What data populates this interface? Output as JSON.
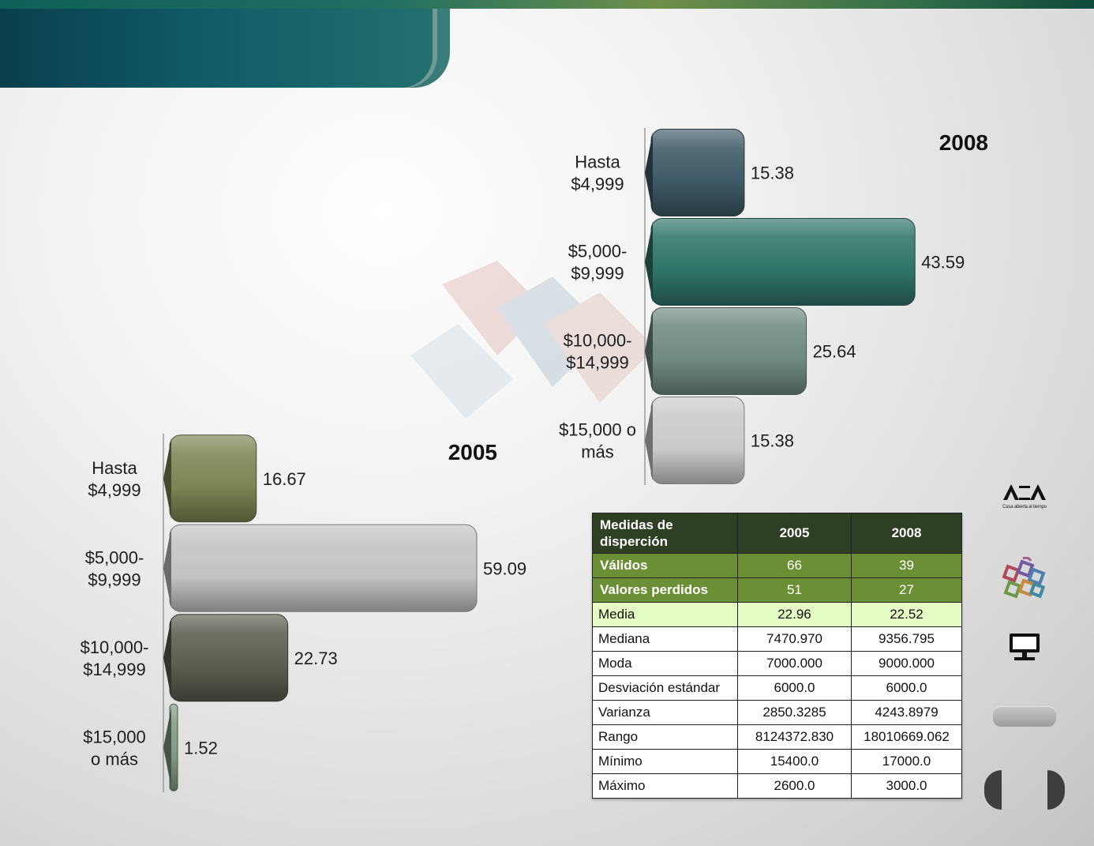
{
  "chart_data": [
    {
      "type": "bar",
      "orientation": "horizontal",
      "title": "2008",
      "categories": [
        "Hasta $4,999",
        "$5,000-$9,999",
        "$10,000-$14,999",
        "$15,000 o más"
      ],
      "category_lines": [
        [
          "Hasta",
          "$4,999"
        ],
        [
          "$5,000-",
          "$9,999"
        ],
        [
          "$10,000-",
          "$14,999"
        ],
        [
          "$15,000 o",
          "más"
        ]
      ],
      "values": [
        15.38,
        43.59,
        25.64,
        15.38
      ],
      "value_labels": [
        "15.38",
        "43.59",
        "25.64",
        "15.38"
      ],
      "colors": [
        "#3e5a66",
        "#2f7468",
        "#6f8a82",
        "#c9cbcb"
      ],
      "xlim": [
        0,
        45
      ],
      "legend": "none",
      "grid": false
    },
    {
      "type": "bar",
      "orientation": "horizontal",
      "title": "2005",
      "categories": [
        "Hasta $4,999",
        "$5,000-$9,999",
        "$10,000-$14,999",
        "$15,000 o más"
      ],
      "category_lines": [
        [
          "Hasta",
          "$4,999"
        ],
        [
          "$5,000-",
          "$9,999"
        ],
        [
          "$10,000-",
          "$14,999"
        ],
        [
          "$15,000",
          "o más"
        ]
      ],
      "values": [
        16.67,
        59.09,
        22.73,
        1.52
      ],
      "value_labels": [
        "16.67",
        "59.09",
        "22.73",
        "1.52"
      ],
      "colors": [
        "#7c8453",
        "#c3c3c1",
        "#5c5c50",
        "#7f9a82"
      ],
      "xlim": [
        0,
        60
      ],
      "legend": "none",
      "grid": false
    }
  ],
  "table": {
    "header": [
      "Medidas de disperción",
      "2005",
      "2008"
    ],
    "header_first_lines": [
      "Medidas de",
      "disperción"
    ],
    "rows": [
      [
        "Válidos",
        "66",
        "39"
      ],
      [
        "Valores perdidos",
        "51",
        "27"
      ],
      [
        "Media",
        "22.96",
        "22.52"
      ],
      [
        "Mediana",
        "7470.970",
        "9356.795"
      ],
      [
        "Moda",
        "7000.000",
        "9000.000"
      ],
      [
        "Desviación  estándar",
        "6000.0",
        "6000.0"
      ],
      [
        "Varianza",
        "2850.3285",
        "4243.8979"
      ],
      [
        "Rango",
        "8124372.830",
        "18010669.062"
      ],
      [
        "Mínimo",
        "15400.0",
        "17000.0"
      ],
      [
        "Máximo",
        "2600.0",
        "3000.0"
      ]
    ],
    "colors": {
      "header": "#2f3f23",
      "highlight": "#6a8f34",
      "media": "#e4fbc4"
    }
  },
  "logo": {
    "caption": "Casa abierta al tiempo"
  },
  "icons": [
    "uam-logo-icon",
    "colored-squares-icon",
    "monitor-icon",
    "menu-pill",
    "nav-prev-icon",
    "nav-next-icon"
  ]
}
